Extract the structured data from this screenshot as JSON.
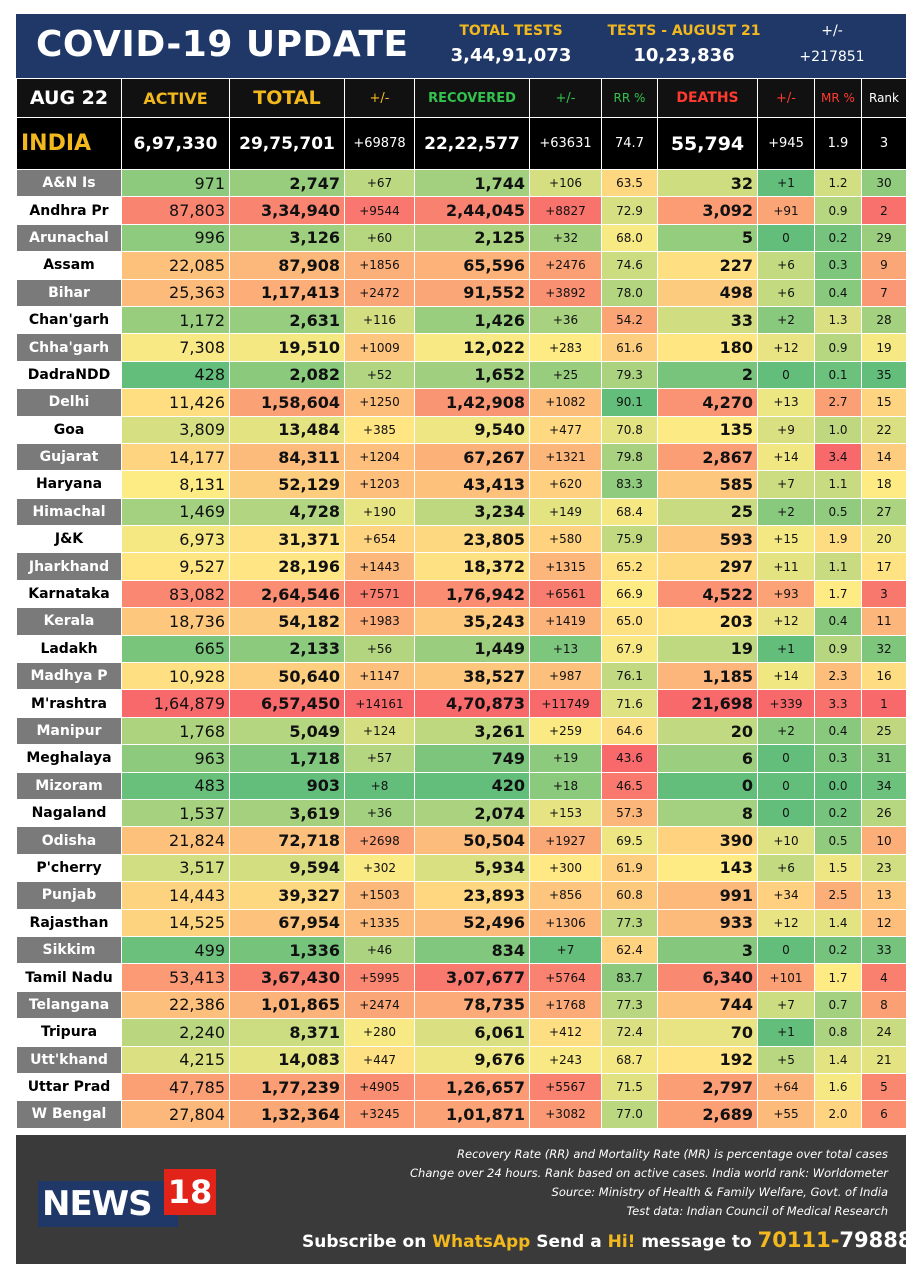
{
  "header": {
    "title": "COVID-19 UPDATE",
    "total_tests_label": "TOTAL TESTS",
    "total_tests_value": "3,44,91,073",
    "tests_day_label": "TESTS - AUGUST 21",
    "tests_day_value": "10,23,836",
    "change_label": "+/-",
    "change_value": "+217851"
  },
  "columns": {
    "date": "AUG 22",
    "active": "ACTIVE",
    "total": "TOTAL",
    "total_change": "+/-",
    "recovered": "RECOVERED",
    "recovered_change": "+/-",
    "rr": "RR %",
    "deaths": "DEATHS",
    "deaths_change": "+/-",
    "mr": "MR %",
    "rank": "Rank"
  },
  "india": {
    "name": "INDIA",
    "active": "6,97,330",
    "total": "29,75,701",
    "total_change": "+69878",
    "recovered": "22,22,577",
    "recovered_change": "+63631",
    "rr": "74.7",
    "deaths": "55,794",
    "deaths_change": "+945",
    "mr": "1.9",
    "rank": "3"
  },
  "rows": [
    [
      "A&N Is",
      "971",
      "2,747",
      "+67",
      "1,744",
      "+106",
      "63.5",
      "32",
      "+1",
      "1.2",
      "30"
    ],
    [
      "Andhra Pr",
      "87,803",
      "3,34,940",
      "+9544",
      "2,44,045",
      "+8827",
      "72.9",
      "3,092",
      "+91",
      "0.9",
      "2"
    ],
    [
      "Arunachal",
      "996",
      "3,126",
      "+60",
      "2,125",
      "+32",
      "68.0",
      "5",
      "0",
      "0.2",
      "29"
    ],
    [
      "Assam",
      "22,085",
      "87,908",
      "+1856",
      "65,596",
      "+2476",
      "74.6",
      "227",
      "+6",
      "0.3",
      "9"
    ],
    [
      "Bihar",
      "25,363",
      "1,17,413",
      "+2472",
      "91,552",
      "+3892",
      "78.0",
      "498",
      "+6",
      "0.4",
      "7"
    ],
    [
      "Chan'garh",
      "1,172",
      "2,631",
      "+116",
      "1,426",
      "+36",
      "54.2",
      "33",
      "+2",
      "1.3",
      "28"
    ],
    [
      "Chha'garh",
      "7,308",
      "19,510",
      "+1009",
      "12,022",
      "+283",
      "61.6",
      "180",
      "+12",
      "0.9",
      "19"
    ],
    [
      "DadraNDD",
      "428",
      "2,082",
      "+52",
      "1,652",
      "+25",
      "79.3",
      "2",
      "0",
      "0.1",
      "35"
    ],
    [
      "Delhi",
      "11,426",
      "1,58,604",
      "+1250",
      "1,42,908",
      "+1082",
      "90.1",
      "4,270",
      "+13",
      "2.7",
      "15"
    ],
    [
      "Goa",
      "3,809",
      "13,484",
      "+385",
      "9,540",
      "+477",
      "70.8",
      "135",
      "+9",
      "1.0",
      "22"
    ],
    [
      "Gujarat",
      "14,177",
      "84,311",
      "+1204",
      "67,267",
      "+1321",
      "79.8",
      "2,867",
      "+14",
      "3.4",
      "14"
    ],
    [
      "Haryana",
      "8,131",
      "52,129",
      "+1203",
      "43,413",
      "+620",
      "83.3",
      "585",
      "+7",
      "1.1",
      "18"
    ],
    [
      "Himachal",
      "1,469",
      "4,728",
      "+190",
      "3,234",
      "+149",
      "68.4",
      "25",
      "+2",
      "0.5",
      "27"
    ],
    [
      "J&K",
      "6,973",
      "31,371",
      "+654",
      "23,805",
      "+580",
      "75.9",
      "593",
      "+15",
      "1.9",
      "20"
    ],
    [
      "Jharkhand",
      "9,527",
      "28,196",
      "+1443",
      "18,372",
      "+1315",
      "65.2",
      "297",
      "+11",
      "1.1",
      "17"
    ],
    [
      "Karnataka",
      "83,082",
      "2,64,546",
      "+7571",
      "1,76,942",
      "+6561",
      "66.9",
      "4,522",
      "+93",
      "1.7",
      "3"
    ],
    [
      "Kerala",
      "18,736",
      "54,182",
      "+1983",
      "35,243",
      "+1419",
      "65.0",
      "203",
      "+12",
      "0.4",
      "11"
    ],
    [
      "Ladakh",
      "665",
      "2,133",
      "+56",
      "1,449",
      "+13",
      "67.9",
      "19",
      "+1",
      "0.9",
      "32"
    ],
    [
      "Madhya P",
      "10,928",
      "50,640",
      "+1147",
      "38,527",
      "+987",
      "76.1",
      "1,185",
      "+14",
      "2.3",
      "16"
    ],
    [
      "M'rashtra",
      "1,64,879",
      "6,57,450",
      "+14161",
      "4,70,873",
      "+11749",
      "71.6",
      "21,698",
      "+339",
      "3.3",
      "1"
    ],
    [
      "Manipur",
      "1,768",
      "5,049",
      "+124",
      "3,261",
      "+259",
      "64.6",
      "20",
      "+2",
      "0.4",
      "25"
    ],
    [
      "Meghalaya",
      "963",
      "1,718",
      "+57",
      "749",
      "+19",
      "43.6",
      "6",
      "0",
      "0.3",
      "31"
    ],
    [
      "Mizoram",
      "483",
      "903",
      "+8",
      "420",
      "+18",
      "46.5",
      "0",
      "0",
      "0.0",
      "34"
    ],
    [
      "Nagaland",
      "1,537",
      "3,619",
      "+36",
      "2,074",
      "+153",
      "57.3",
      "8",
      "0",
      "0.2",
      "26"
    ],
    [
      "Odisha",
      "21,824",
      "72,718",
      "+2698",
      "50,504",
      "+1927",
      "69.5",
      "390",
      "+10",
      "0.5",
      "10"
    ],
    [
      "P'cherry",
      "3,517",
      "9,594",
      "+302",
      "5,934",
      "+300",
      "61.9",
      "143",
      "+6",
      "1.5",
      "23"
    ],
    [
      "Punjab",
      "14,443",
      "39,327",
      "+1503",
      "23,893",
      "+856",
      "60.8",
      "991",
      "+34",
      "2.5",
      "13"
    ],
    [
      "Rajasthan",
      "14,525",
      "67,954",
      "+1335",
      "52,496",
      "+1306",
      "77.3",
      "933",
      "+12",
      "1.4",
      "12"
    ],
    [
      "Sikkim",
      "499",
      "1,336",
      "+46",
      "834",
      "+7",
      "62.4",
      "3",
      "0",
      "0.2",
      "33"
    ],
    [
      "Tamil Nadu",
      "53,413",
      "3,67,430",
      "+5995",
      "3,07,677",
      "+5764",
      "83.7",
      "6,340",
      "+101",
      "1.7",
      "4"
    ],
    [
      "Telangana",
      "22,386",
      "1,01,865",
      "+2474",
      "78,735",
      "+1768",
      "77.3",
      "744",
      "+7",
      "0.7",
      "8"
    ],
    [
      "Tripura",
      "2,240",
      "8,371",
      "+280",
      "6,061",
      "+412",
      "72.4",
      "70",
      "+1",
      "0.8",
      "24"
    ],
    [
      "Utt'khand",
      "4,215",
      "14,083",
      "+447",
      "9,676",
      "+243",
      "68.7",
      "192",
      "+5",
      "1.4",
      "21"
    ],
    [
      "Uttar Prad",
      "47,785",
      "1,77,239",
      "+4905",
      "1,26,657",
      "+5567",
      "71.5",
      "2,797",
      "+64",
      "1.6",
      "5"
    ],
    [
      "W Bengal",
      "27,804",
      "1,32,364",
      "+3245",
      "1,01,871",
      "+3082",
      "77.0",
      "2,689",
      "+55",
      "2.0",
      "6"
    ]
  ],
  "colors": {
    "header_bg": "#1f3868",
    "accent_yellow": "#f2b81d",
    "green_header": "#33c24d",
    "red_header": "#ff3b30",
    "scale_high": "#f8696b",
    "scale_mid": "#ffeb84",
    "scale_low": "#63be7b",
    "footer_bg": "#3a3a3a"
  },
  "footer": {
    "note1": "Recovery Rate (RR) and Mortality Rate (MR) is percentage over total cases",
    "note2": "Change over 24 hours. Rank based on active cases. India world rank: Worldometer",
    "note3": "Source: Ministry of Health & Family Welfare, Govt. of India",
    "note4": "Test data: Indian Council of Medical Research",
    "logo_news": "NEWS",
    "logo_num": "18",
    "subscribe_1": "Subscribe on ",
    "subscribe_whatsapp": "WhatsApp",
    "subscribe_2": " Send a ",
    "subscribe_hi": "Hi!",
    "subscribe_3": " message to ",
    "phone_1": "70111-",
    "phone_2": "79888"
  }
}
